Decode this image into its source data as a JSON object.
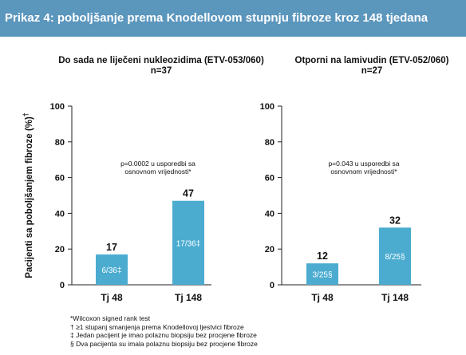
{
  "banner_title": "Prikaz 4: poboljšanje prema Knodellovom stupnju fibroze kroz 148 tjedana",
  "chart_data": {
    "type": "bar",
    "ylabel": "Pacijenti sa poboljšanjem fibroze (%)",
    "ylabel_mark": "†",
    "ylim": [
      0,
      100
    ],
    "yticks": [
      0,
      20,
      40,
      60,
      80,
      100
    ],
    "bar_color": "#4bacd0",
    "panels": [
      {
        "title": "Do sada ne liječeni nukleozidima (ETV-053/060)",
        "subtitle": "n=37",
        "categories": [
          "Tj 48",
          "Tj 148"
        ],
        "values": [
          17,
          47
        ],
        "bar_labels": [
          "6/36‡",
          "17/36‡"
        ],
        "annotation": [
          "p=0.0002 u usporedbi sa",
          "osnovnom vrijednosti*"
        ]
      },
      {
        "title": "Otporni na lamivudin (ETV-052/060)",
        "subtitle": "n=27",
        "categories": [
          "Tj 48",
          "Tj 148"
        ],
        "values": [
          12,
          32
        ],
        "bar_labels": [
          "3/25§",
          "8/25§"
        ],
        "annotation": [
          "p=0.043 u usporedbi sa",
          "osnovnom vrijednosti*"
        ]
      }
    ]
  },
  "footnotes": [
    "*Wilcoxon signed rank test",
    "† ≥1 stupanj smanjenja prema Knodellovoj ljestvici fibroze",
    "‡ Jedan pacijent je imao polaznu biopsiju bez procjene fibroze",
    "§ Dva pacijenta su imala polaznu biopsiju bez procjene fibroze"
  ]
}
